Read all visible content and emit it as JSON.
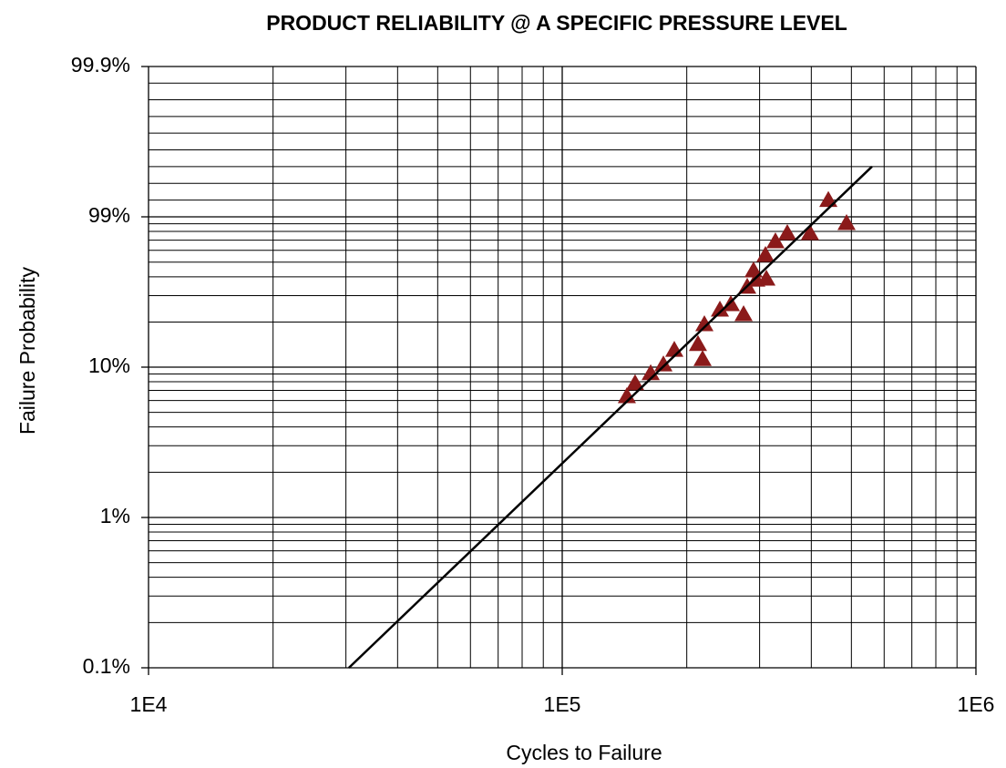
{
  "chart_data": {
    "type": "scatter",
    "title": "PRODUCT RELIABILITY @ A SPECIFIC PRESSURE LEVEL",
    "xlabel": "Cycles to Failure",
    "ylabel": "Failure Probability",
    "xscale": "log",
    "yscale": "probability",
    "grid": true,
    "xlim": [
      10000,
      1000000
    ],
    "xticks": [
      {
        "value": 10000,
        "label": "1E4"
      },
      {
        "value": 100000,
        "label": "1E5"
      },
      {
        "value": 1000000,
        "label": "1E6"
      }
    ],
    "ylim": [
      0.1,
      99.9
    ],
    "yticks": [
      {
        "value": 0.1,
        "label": "0.1%"
      },
      {
        "value": 1,
        "label": "1%"
      },
      {
        "value": 10,
        "label": "10%"
      },
      {
        "value": 99,
        "label": "99%"
      },
      {
        "value": 99.9,
        "label": "99.9%"
      }
    ],
    "series": [
      {
        "type": "scatter",
        "marker": "triangle",
        "color": "#8b1a1a",
        "x": [
          143300,
          150000,
          163600,
          175600,
          186600,
          218400,
          212900,
          220600,
          240500,
          255600,
          274400,
          280000,
          290000,
          294500,
          311500,
          309900,
          327600,
          350000,
          397000,
          439800,
          486700
        ],
        "values": [
          6.4,
          7.8,
          9.1,
          10.4,
          13.0,
          11.3,
          14.2,
          19.2,
          24.0,
          26.1,
          22.4,
          34.0,
          43.6,
          37.9,
          38.5,
          55.2,
          68.0,
          77.1,
          77.1,
          99.1,
          89.8
        ]
      },
      {
        "type": "line",
        "color": "#000000",
        "x": [
          30500,
          560800
        ],
        "values": [
          0.1,
          99.3
        ]
      }
    ]
  }
}
